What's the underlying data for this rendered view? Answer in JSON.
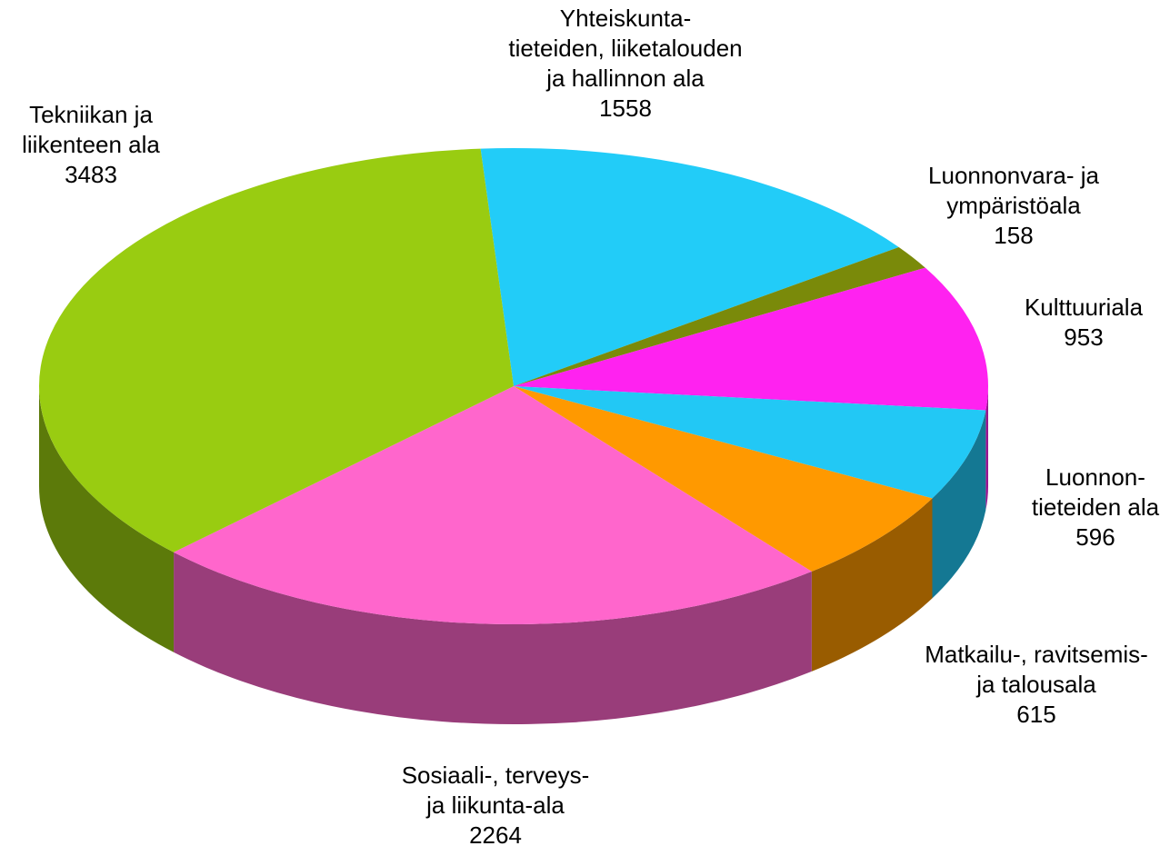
{
  "chart_data": {
    "type": "pie",
    "categories": [
      [
        "Yhteiskunta-",
        "tieteiden, liiketalouden",
        "ja hallinnon ala"
      ],
      [
        "Luonnonvara- ja",
        "ympäristöala"
      ],
      [
        "Kulttuuriala"
      ],
      [
        "Luonnon-",
        "tieteiden ala"
      ],
      [
        "Matkailu-, ravitsemis-",
        "ja talousala"
      ],
      [
        "Sosiaali-, terveys-",
        "ja liikunta-ala"
      ],
      [
        "Tekniikan ja",
        "liikenteen ala"
      ]
    ],
    "values": [
      1558,
      158,
      953,
      596,
      615,
      2264,
      3483
    ],
    "colors": [
      "#22ccf8",
      "#7a8a0a",
      "#ff22f0",
      "#22c8f5",
      "#ff9900",
      "#ff66cc",
      "#99cc11"
    ]
  }
}
